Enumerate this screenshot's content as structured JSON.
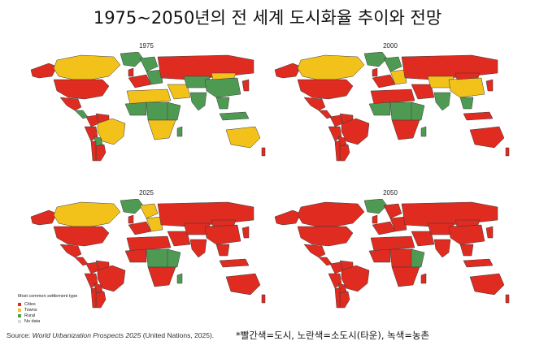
{
  "title": "1975~2050년의 전 세계 도시화율 추이와 전망",
  "colors": {
    "cities": "#e02b20",
    "towns": "#f2c21b",
    "rural": "#4f9a52",
    "no_data": "#d9d9d9"
  },
  "maps": [
    {
      "label": "1975",
      "dominant": "mixed"
    },
    {
      "label": "2000",
      "dominant": "cities"
    },
    {
      "label": "2025",
      "dominant": "cities"
    },
    {
      "label": "2050",
      "dominant": "cities"
    }
  ],
  "legend": {
    "title": "Most common settlement type",
    "items": [
      {
        "label": "Cities",
        "color": "#e02b20"
      },
      {
        "label": "Towns",
        "color": "#f2c21b"
      },
      {
        "label": "Rural",
        "color": "#4f9a52"
      },
      {
        "label": "No data",
        "color": "#d9d9d9"
      }
    ]
  },
  "source": {
    "prefix": "Source: ",
    "italic": "World Urbanization Prospects 2025",
    "suffix": " (United Nations, 2025)."
  },
  "note": "*빨간색=도시, 노란색=소도시(타운), 녹색=농촌"
}
